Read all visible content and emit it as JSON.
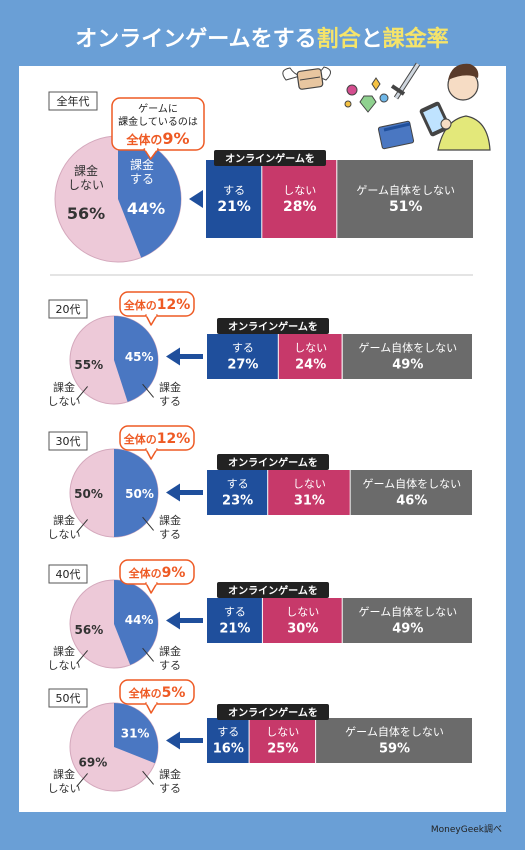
{
  "title_parts": [
    "オンラインゲームをする",
    "割合",
    "と",
    "課金率"
  ],
  "footer": "MoneyGeek調べ",
  "colors": {
    "background": "#6a9fd6",
    "pay": "#4a77c2",
    "nopay": "#edc9d8",
    "bar_do": "#1f4f9c",
    "bar_not": "#c7396a",
    "bar_never": "#6b6b6b",
    "accent": "#ee5a24",
    "title_accent": "#f5e46a"
  },
  "labels": {
    "pay": "課金\nする",
    "nopay": "課金\nしない",
    "bar_header": "オンラインゲームを",
    "do": "する",
    "not": "しない",
    "never": "ゲーム自体をしない"
  },
  "chart_data": [
    {
      "type": "pie",
      "group": "全年代",
      "values": [
        44,
        56
      ],
      "labels": [
        "課金する",
        "課金しない"
      ],
      "annotation": {
        "prefix": "ゲームに\n課金しているのは\n",
        "text": "全体の",
        "value": "9%"
      },
      "bar": {
        "type": "bar",
        "categories": [
          "する",
          "しない",
          "ゲーム自体をしない"
        ],
        "values": [
          21,
          28,
          51
        ]
      }
    },
    {
      "type": "pie",
      "group": "20代",
      "values": [
        45,
        55
      ],
      "labels": [
        "課金する",
        "課金しない"
      ],
      "annotation": {
        "text": "全体の",
        "value": "12%"
      },
      "bar": {
        "type": "bar",
        "categories": [
          "する",
          "しない",
          "ゲーム自体をしない"
        ],
        "values": [
          27,
          24,
          49
        ]
      }
    },
    {
      "type": "pie",
      "group": "30代",
      "values": [
        50,
        50
      ],
      "labels": [
        "課金する",
        "課金しない"
      ],
      "annotation": {
        "text": "全体の",
        "value": "12%"
      },
      "bar": {
        "type": "bar",
        "categories": [
          "する",
          "しない",
          "ゲーム自体をしない"
        ],
        "values": [
          23,
          31,
          46
        ]
      }
    },
    {
      "type": "pie",
      "group": "40代",
      "values": [
        44,
        56
      ],
      "labels": [
        "課金する",
        "課金しない"
      ],
      "annotation": {
        "text": "全体の",
        "value": "9%"
      },
      "bar": {
        "type": "bar",
        "categories": [
          "する",
          "しない",
          "ゲーム自体をしない"
        ],
        "values": [
          21,
          30,
          49
        ]
      }
    },
    {
      "type": "pie",
      "group": "50代",
      "values": [
        31,
        69
      ],
      "labels": [
        "課金する",
        "課金しない"
      ],
      "annotation": {
        "text": "全体の",
        "value": "5%"
      },
      "bar": {
        "type": "bar",
        "categories": [
          "する",
          "しない",
          "ゲーム自体をしない"
        ],
        "values": [
          16,
          25,
          59
        ]
      }
    }
  ]
}
